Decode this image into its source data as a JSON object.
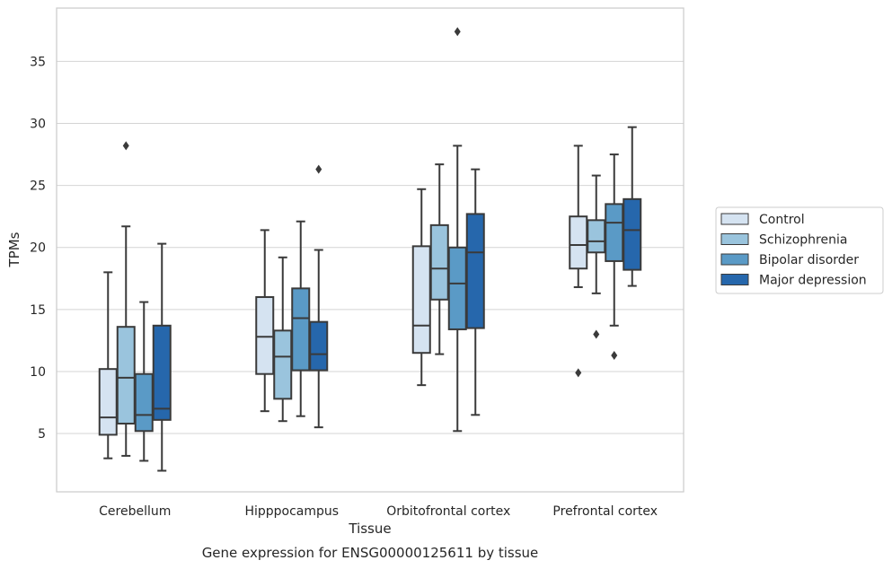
{
  "caption": "Gene expression for ENSG00000125611 by tissue",
  "chart_data": {
    "type": "boxplot",
    "xlabel": "Tissue",
    "ylabel": "TPMs",
    "ylim": [
      0.3,
      39.3
    ],
    "yticks": [
      5,
      10,
      15,
      20,
      25,
      30,
      35
    ],
    "grid": "horizontal",
    "legend_position": "right",
    "categories": [
      "Cerebellum",
      "Hipppocampus",
      "Orbitofrontal cortex",
      "Prefrontal cortex"
    ],
    "series": [
      {
        "name": "Control",
        "color": "#d5e3f1",
        "boxes": [
          {
            "whislo": 3.0,
            "q1": 4.9,
            "med": 6.3,
            "q3": 10.2,
            "whishi": 18.0,
            "fliers": []
          },
          {
            "whislo": 6.8,
            "q1": 9.8,
            "med": 12.8,
            "q3": 16.0,
            "whishi": 21.4,
            "fliers": []
          },
          {
            "whislo": 8.9,
            "q1": 11.5,
            "med": 13.7,
            "q3": 20.1,
            "whishi": 24.7,
            "fliers": []
          },
          {
            "whislo": 16.8,
            "q1": 18.3,
            "med": 20.2,
            "q3": 22.5,
            "whishi": 28.2,
            "fliers": [
              9.9
            ]
          }
        ]
      },
      {
        "name": "Schizophrenia",
        "color": "#9ac4dd",
        "boxes": [
          {
            "whislo": 3.2,
            "q1": 5.8,
            "med": 9.5,
            "q3": 13.6,
            "whishi": 21.7,
            "fliers": [
              28.2
            ]
          },
          {
            "whislo": 6.0,
            "q1": 7.8,
            "med": 11.2,
            "q3": 13.3,
            "whishi": 19.2,
            "fliers": []
          },
          {
            "whislo": 11.4,
            "q1": 15.8,
            "med": 18.3,
            "q3": 21.8,
            "whishi": 26.7,
            "fliers": []
          },
          {
            "whislo": 16.3,
            "q1": 19.6,
            "med": 20.5,
            "q3": 22.2,
            "whishi": 25.8,
            "fliers": [
              13.0
            ]
          }
        ]
      },
      {
        "name": "Bipolar disorder",
        "color": "#5a9ac6",
        "boxes": [
          {
            "whislo": 2.8,
            "q1": 5.2,
            "med": 6.5,
            "q3": 9.8,
            "whishi": 15.6,
            "fliers": []
          },
          {
            "whislo": 6.4,
            "q1": 10.1,
            "med": 14.3,
            "q3": 16.7,
            "whishi": 22.1,
            "fliers": []
          },
          {
            "whislo": 5.2,
            "q1": 13.4,
            "med": 17.1,
            "q3": 20.0,
            "whishi": 28.2,
            "fliers": [
              37.4
            ]
          },
          {
            "whislo": 13.7,
            "q1": 18.9,
            "med": 22.0,
            "q3": 23.5,
            "whishi": 27.5,
            "fliers": [
              11.3
            ]
          }
        ]
      },
      {
        "name": "Major depression",
        "color": "#2667ac",
        "boxes": [
          {
            "whislo": 2.0,
            "q1": 6.1,
            "med": 7.0,
            "q3": 13.7,
            "whishi": 20.3,
            "fliers": []
          },
          {
            "whislo": 5.5,
            "q1": 10.1,
            "med": 11.4,
            "q3": 14.0,
            "whishi": 19.8,
            "fliers": [
              26.3
            ]
          },
          {
            "whislo": 6.5,
            "q1": 13.5,
            "med": 19.6,
            "q3": 22.7,
            "whishi": 26.3,
            "fliers": []
          },
          {
            "whislo": 16.9,
            "q1": 18.2,
            "med": 21.4,
            "q3": 23.9,
            "whishi": 29.7,
            "fliers": []
          }
        ]
      }
    ]
  }
}
